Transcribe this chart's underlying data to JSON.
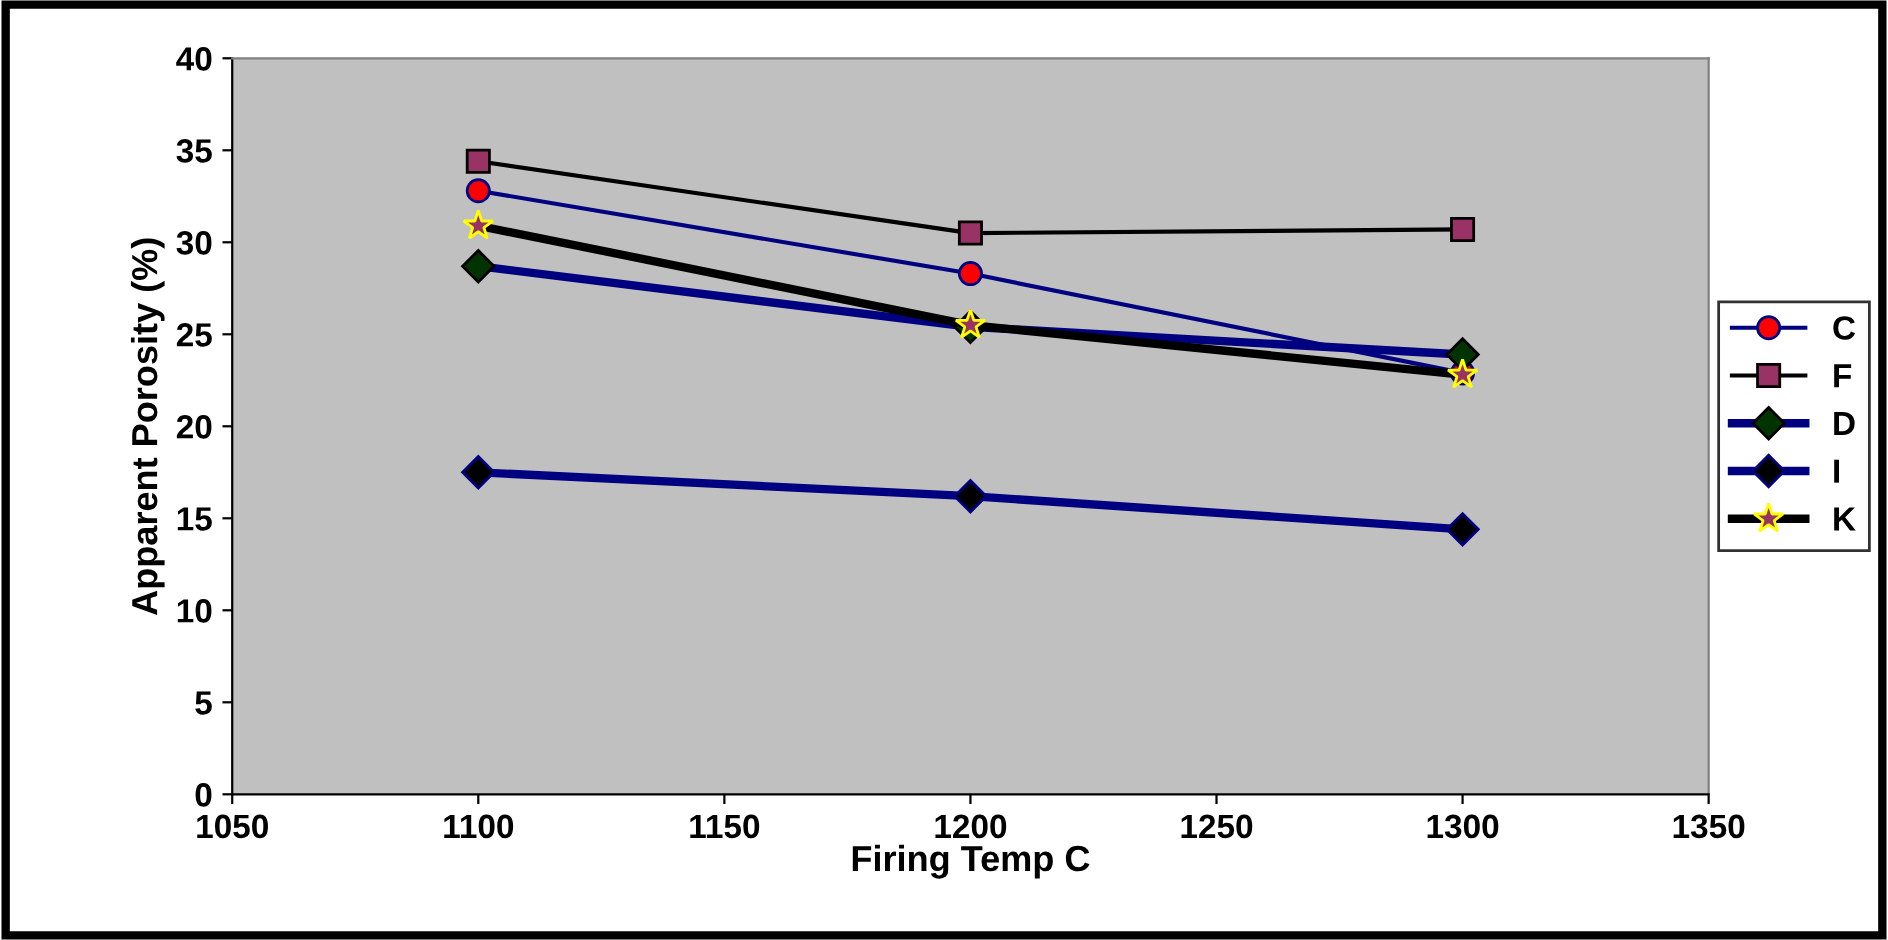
{
  "chart_data": {
    "type": "line",
    "xlabel": "Firing Temp C",
    "ylabel": "Apparent Porosity (%)",
    "x": [
      1100,
      1200,
      1300
    ],
    "xlim": [
      1050,
      1350
    ],
    "xticks": [
      1050,
      1100,
      1150,
      1200,
      1250,
      1300,
      1350
    ],
    "ylim": [
      0,
      40
    ],
    "yticks": [
      0,
      5,
      10,
      15,
      20,
      25,
      30,
      35,
      40
    ],
    "grid": false,
    "legend": "right",
    "series": [
      {
        "name": "C",
        "color": "#000080",
        "marker": "circle",
        "values": [
          32.8,
          28.3,
          22.9
        ]
      },
      {
        "name": "F",
        "color": "#000000",
        "marker": "square",
        "values": [
          34.4,
          30.5,
          30.7
        ]
      },
      {
        "name": "D",
        "color": "#000080",
        "marker": "diamond",
        "values": [
          28.7,
          25.4,
          23.9
        ]
      },
      {
        "name": "I",
        "color": "#000080",
        "marker": "diamond",
        "values": [
          17.5,
          16.2,
          14.4
        ]
      },
      {
        "name": "K",
        "color": "#000000",
        "marker": "star",
        "values": [
          30.9,
          25.5,
          22.8
        ]
      }
    ]
  }
}
